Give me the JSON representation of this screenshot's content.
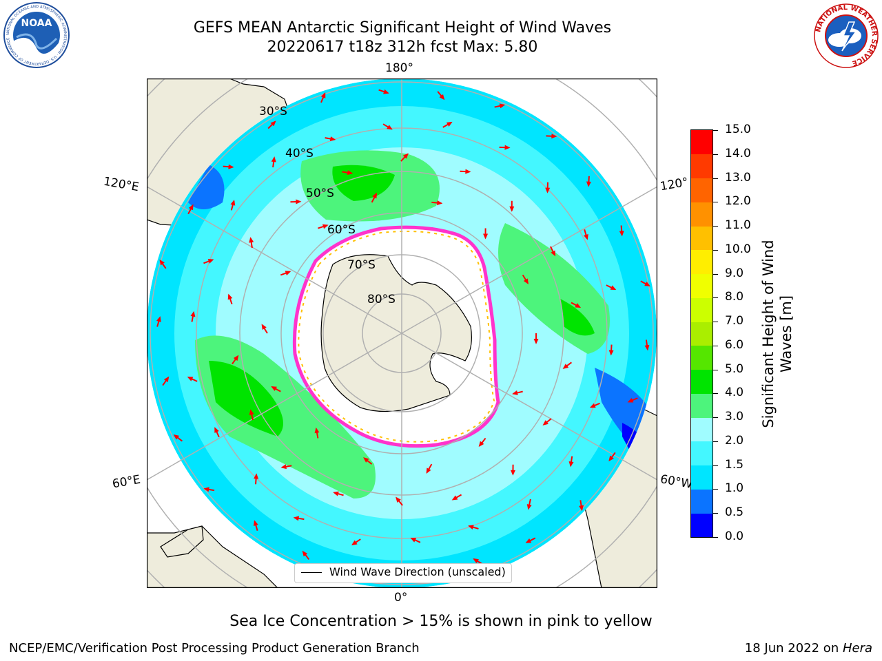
{
  "header": {
    "title_line1": "GEFS MEAN Antarctic Significant Height of Wind Waves",
    "title_line2": "20220617 t18z 312h fcst   Max: 5.80"
  },
  "logos": {
    "left": {
      "icon": "noaa-logo",
      "text": "NOAA",
      "ring_text": "NATIONAL OCEANIC AND ATMOSPHERIC ADMINISTRATION · U.S. DEPARTMENT OF COMMERCE"
    },
    "right": {
      "icon": "national-weather-service-logo",
      "ring_text": "NATIONAL WEATHER SERVICE"
    }
  },
  "map": {
    "projection": "south-polar-stereographic",
    "longitude_labels": {
      "top": "180°",
      "bottom": "0°",
      "left_upper": "120°E",
      "left_lower": "60°E",
      "right_upper": "120°",
      "right_lower": "60°W"
    },
    "latitude_labels": [
      "30°S",
      "40°S",
      "50°S",
      "60°S",
      "70°S",
      "80°S"
    ],
    "colors": {
      "land": "#eeecdc",
      "ice_edge": "#ff33cc",
      "arrow": "#ff0000",
      "grid": "#b0b0b0"
    }
  },
  "legend": {
    "label": "Wind Wave Direction (unscaled)"
  },
  "colorbar": {
    "label_line1": "Significant Height of Wind",
    "label_line2": "Waves [m]",
    "ticks": [
      "0.0",
      "0.5",
      "1.0",
      "1.5",
      "2.0",
      "3.0",
      "4.0",
      "5.0",
      "6.0",
      "7.0",
      "8.0",
      "9.0",
      "10.0",
      "11.0",
      "12.0",
      "13.0",
      "14.0",
      "15.0"
    ],
    "colors": [
      "#0000ff",
      "#0b74ff",
      "#00e5ff",
      "#44f7ff",
      "#a0fcff",
      "#4df47c",
      "#00e400",
      "#55e600",
      "#aaee00",
      "#ccff00",
      "#f0ff00",
      "#ffee00",
      "#ffc000",
      "#ff9100",
      "#ff6400",
      "#ff3a00",
      "#ff0000"
    ]
  },
  "footer": {
    "note": "Sea Ice Concentration > 15% is shown in pink to yellow",
    "credit_left": "NCEP/EMC/Verification Post Processing Product Generation Branch",
    "credit_date": "18 Jun 2022 on ",
    "credit_host": "Hera"
  }
}
